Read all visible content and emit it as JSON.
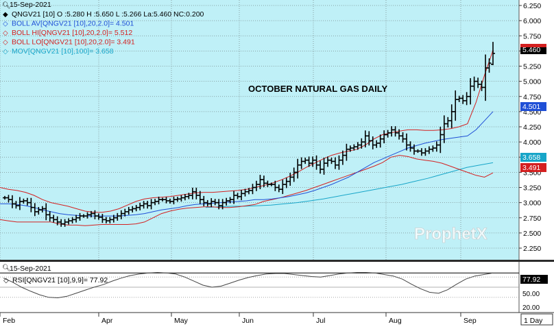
{
  "header": {
    "date": "15-Sep-2021",
    "ohlc_line": "QNGV21 [10] O :5.280 H :5.650 L :5.266 L:a:5.460 NC:0.200"
  },
  "legend": [
    {
      "text": "QNGV21 [10] O :5.280 H :5.650 L :5.266 La:5.460 NC:0.200",
      "color": "#000000",
      "icon": "diamond-filled-icon"
    },
    {
      "text": "BOLL AV[QNGV21 [10],20,2.0]= 4.501",
      "color": "#1f4fd6",
      "icon": "diamond-outline-icon"
    },
    {
      "text": "BOLL HI[QNGV21 [10],20,2.0]= 5.512",
      "color": "#d42020",
      "icon": "diamond-outline-icon"
    },
    {
      "text": "BOLL LO[QNGV21 [10],20,2.0]= 3.491",
      "color": "#d42020",
      "icon": "diamond-outline-icon"
    },
    {
      "text": "MOV[QNGV21 [10],100]= 3.658",
      "color": "#17a5c8",
      "icon": "diamond-outline-icon"
    }
  ],
  "chart_title": "OCTOBER NATURAL GAS DAILY",
  "watermark": "ProphetX",
  "price_axis": [
    "6.250",
    "6.000",
    "5.750",
    "5.500",
    "5.250",
    "5.000",
    "4.750",
    "4.500",
    "4.250",
    "4.000",
    "3.750",
    "3.500",
    "3.250",
    "3.000",
    "2.750",
    "2.500",
    "2.250"
  ],
  "price_tags": [
    {
      "label": "5.460",
      "value": 5.46,
      "bg": "#000000",
      "fg": "#ffffff"
    },
    {
      "label": "4.501",
      "value": 4.501,
      "bg": "#1f4fd6",
      "fg": "#ffffff"
    },
    {
      "label": "3.658",
      "value": 3.658,
      "bg": "#17a5c8",
      "fg": "#ffffff"
    },
    {
      "label": "3.491",
      "value": 3.491,
      "bg": "#d42020",
      "fg": "#ffffff"
    }
  ],
  "month_labels": [
    "Feb",
    "Apr",
    "May",
    "Jun",
    "Jul",
    "Aug",
    "Sep"
  ],
  "timeframe": "1 Day",
  "rsi_panel": {
    "date": "15-Sep-2021",
    "legend": "RSI[QNGV21 [10],9,9]= 77.92",
    "axis_labels": [
      "50.00",
      "20.00"
    ],
    "value_tag": "77.92",
    "value": 77.92
  },
  "colors": {
    "plot_bg": "#bff0f7",
    "grid": "#7a8a8c",
    "bars": "#000000",
    "boll_mid": "#1f4fd6",
    "boll_band": "#d42020",
    "ma100": "#17a5c8"
  },
  "chart_data": {
    "type": "ohlc",
    "title": "OCTOBER NATURAL GAS DAILY",
    "symbol": "QNGV21",
    "y_range": [
      2.1,
      6.3
    ],
    "y_ticks": [
      2.25,
      2.5,
      2.75,
      3.0,
      3.25,
      3.5,
      3.75,
      4.0,
      4.25,
      4.5,
      4.75,
      5.0,
      5.25,
      5.5,
      5.75,
      6.0,
      6.25
    ],
    "x_labels": [
      "Feb",
      "Apr",
      "May",
      "Jun",
      "Jul",
      "Aug",
      "Sep"
    ],
    "last_bar": {
      "open": 5.28,
      "high": 5.65,
      "low": 5.266,
      "last": 5.46,
      "net_change": 0.2
    },
    "close": [
      3.08,
      3.05,
      2.98,
      2.95,
      3.02,
      3.03,
      3.0,
      2.92,
      2.85,
      2.88,
      2.9,
      2.8,
      2.75,
      2.72,
      2.68,
      2.65,
      2.68,
      2.7,
      2.72,
      2.75,
      2.78,
      2.78,
      2.8,
      2.82,
      2.78,
      2.76,
      2.72,
      2.7,
      2.72,
      2.75,
      2.78,
      2.82,
      2.85,
      2.88,
      2.9,
      2.92,
      2.95,
      2.98,
      2.95,
      3.0,
      3.02,
      3.05,
      3.05,
      3.03,
      3.02,
      3.05,
      3.06,
      3.08,
      3.1,
      3.12,
      3.18,
      3.12,
      3.05,
      3.0,
      2.98,
      3.02,
      3.0,
      2.95,
      3.0,
      3.03,
      3.05,
      3.12,
      3.1,
      3.15,
      3.18,
      3.2,
      3.25,
      3.3,
      3.38,
      3.32,
      3.3,
      3.3,
      3.25,
      3.22,
      3.3,
      3.35,
      3.42,
      3.5,
      3.62,
      3.68,
      3.7,
      3.65,
      3.7,
      3.62,
      3.55,
      3.65,
      3.7,
      3.68,
      3.62,
      3.7,
      3.78,
      3.88,
      3.9,
      3.92,
      3.95,
      4.0,
      4.1,
      4.02,
      3.95,
      3.98,
      4.05,
      4.12,
      4.15,
      4.2,
      4.15,
      4.1,
      4.05,
      3.95,
      3.9,
      3.85,
      3.85,
      3.82,
      3.85,
      3.88,
      3.9,
      3.95,
      4.12,
      4.3,
      4.35,
      4.5,
      4.7,
      4.72,
      4.68,
      4.75,
      4.92,
      5.0,
      4.95,
      4.9,
      5.22,
      5.3,
      5.46
    ],
    "bollinger": {
      "period": 20,
      "stddev": 2.0,
      "middle": [
        2.98,
        2.98,
        2.97,
        2.95,
        2.92,
        2.88,
        2.85,
        2.82,
        2.8,
        2.79,
        2.78,
        2.78,
        2.78,
        2.78,
        2.78,
        2.79,
        2.8,
        2.82,
        2.85,
        2.88,
        2.9,
        2.92,
        2.95,
        2.97,
        2.98,
        2.99,
        3.0,
        3.01,
        3.02,
        3.03,
        3.05,
        3.05,
        3.06,
        3.08,
        3.1,
        3.13,
        3.16,
        3.2,
        3.25,
        3.3,
        3.36,
        3.42,
        3.5,
        3.58,
        3.66,
        3.72,
        3.78,
        3.84,
        3.9,
        3.94,
        3.98,
        4.01,
        4.04,
        4.06,
        4.08,
        4.1,
        4.2,
        4.35,
        4.501
      ],
      "upper": [
        3.25,
        3.22,
        3.2,
        3.17,
        3.12,
        3.05,
        3.0,
        2.97,
        2.94,
        2.9,
        2.86,
        2.84,
        2.84,
        2.86,
        2.9,
        2.96,
        3.02,
        3.06,
        3.08,
        3.09,
        3.1,
        3.12,
        3.14,
        3.16,
        3.17,
        3.17,
        3.18,
        3.19,
        3.2,
        3.22,
        3.25,
        3.28,
        3.32,
        3.37,
        3.43,
        3.5,
        3.58,
        3.65,
        3.72,
        3.78,
        3.82,
        3.85,
        3.88,
        3.95,
        4.05,
        4.12,
        4.15,
        4.18,
        4.2,
        4.2,
        4.19,
        4.19,
        4.2,
        4.22,
        4.25,
        4.3,
        4.65,
        5.1,
        5.512
      ],
      "lower": [
        2.72,
        2.7,
        2.68,
        2.68,
        2.68,
        2.68,
        2.68,
        2.65,
        2.63,
        2.63,
        2.62,
        2.63,
        2.64,
        2.64,
        2.64,
        2.64,
        2.65,
        2.68,
        2.75,
        2.82,
        2.86,
        2.89,
        2.91,
        2.92,
        2.93,
        2.93,
        2.92,
        2.92,
        2.93,
        2.95,
        2.97,
        3.02,
        3.05,
        3.08,
        3.12,
        3.16,
        3.2,
        3.25,
        3.3,
        3.35,
        3.4,
        3.45,
        3.5,
        3.55,
        3.6,
        3.66,
        3.75,
        3.78,
        3.76,
        3.72,
        3.7,
        3.68,
        3.65,
        3.6,
        3.55,
        3.5,
        3.45,
        3.42,
        3.491
      ]
    },
    "moving_average": {
      "period": 100,
      "values": [
        2.92,
        2.93,
        2.94,
        2.94,
        2.95,
        2.96,
        2.98,
        3.0,
        3.03,
        3.06,
        3.1,
        3.14,
        3.18,
        3.22,
        3.26,
        3.3,
        3.35,
        3.4,
        3.46,
        3.52,
        3.58,
        3.62,
        3.658
      ]
    },
    "rsi": {
      "period": 9,
      "smoothing": 9,
      "last": 77.92,
      "values": [
        68,
        60,
        50,
        42,
        35,
        30,
        29,
        32,
        38,
        44,
        50,
        55,
        62,
        68,
        73,
        76,
        78,
        79,
        78,
        76,
        70,
        62,
        54,
        50,
        52,
        58,
        64,
        69,
        73,
        76,
        77,
        77,
        75,
        73,
        71,
        70,
        73,
        76,
        78,
        79,
        79,
        78,
        75,
        72,
        66,
        56,
        47,
        40,
        38,
        45,
        56,
        66,
        72,
        75,
        77.92
      ]
    }
  }
}
